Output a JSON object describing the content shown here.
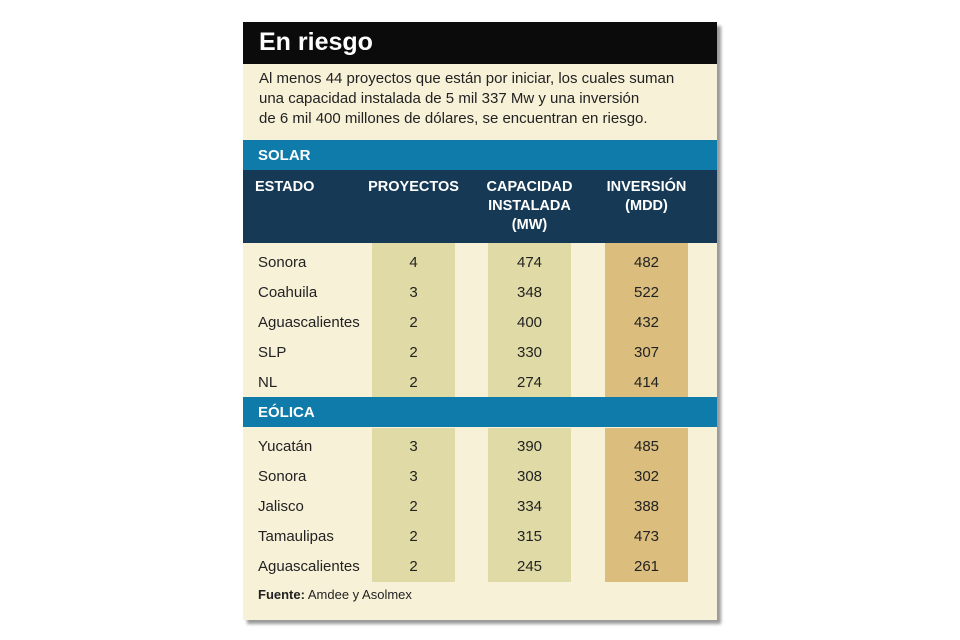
{
  "header": {
    "title": "En riesgo",
    "intro": [
      "Al menos 44 proyectos que están por iniciar, los cuales suman",
      "una capacidad instalada de 5 mil 337 Mw y una inversión",
      "de 6 mil 400 millones de dólares, se encuentran en riesgo."
    ]
  },
  "table": {
    "columns": [
      [
        "ESTADO"
      ],
      [
        "PROYECTOS"
      ],
      [
        "CAPACIDAD",
        "INSTALADA",
        "(MW)"
      ],
      [
        "INVERSIÓN",
        "(MDD)"
      ]
    ],
    "sections": [
      {
        "name": "SOLAR",
        "rows": [
          [
            "Sonora",
            4,
            474,
            482
          ],
          [
            "Coahuila",
            3,
            348,
            522
          ],
          [
            "Aguascalientes",
            2,
            400,
            432
          ],
          [
            "SLP",
            2,
            330,
            307
          ],
          [
            "NL",
            2,
            274,
            414
          ]
        ]
      },
      {
        "name": "EÓLICA",
        "rows": [
          [
            "Yucatán",
            3,
            390,
            485
          ],
          [
            "Sonora",
            3,
            308,
            302
          ],
          [
            "Jalisco",
            2,
            334,
            388
          ],
          [
            "Tamaulipas",
            2,
            315,
            473
          ],
          [
            "Aguascalientes",
            2,
            245,
            261
          ]
        ]
      }
    ]
  },
  "source": {
    "label": "Fuente:",
    "text": "Amdee y Asolmex"
  }
}
